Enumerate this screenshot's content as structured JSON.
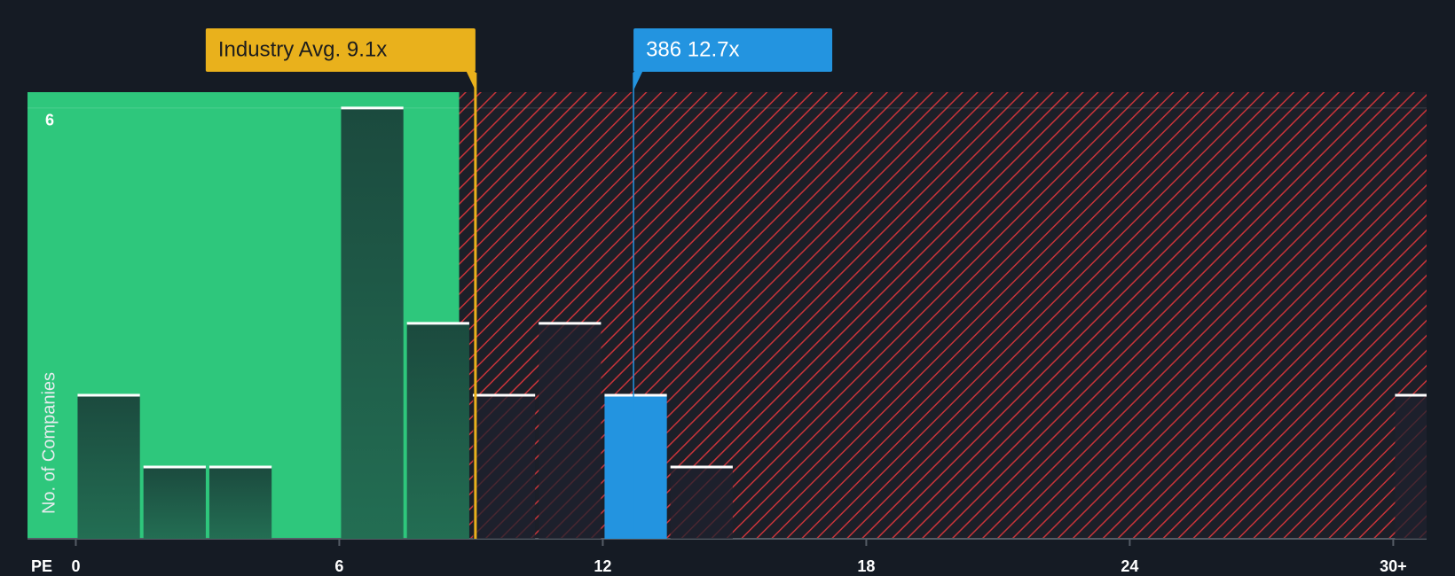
{
  "chart_data": {
    "type": "histogram",
    "x_label": "PE",
    "y_label": "No. of Companies",
    "bins": [
      0,
      1.5,
      3,
      4.5,
      6,
      7.5,
      9,
      10.5,
      12,
      13.5,
      15,
      16.5,
      18,
      19.5,
      21,
      22.5,
      24,
      25.5,
      27,
      28.5,
      30,
      31.5
    ],
    "counts": [
      2,
      1,
      1,
      0,
      6,
      3,
      2,
      3,
      2,
      1,
      0,
      0,
      0,
      0,
      0,
      0,
      0,
      0,
      0,
      0,
      2
    ],
    "xlim": [
      -1.1,
      30.76
    ],
    "ylim": [
      0,
      6.22
    ],
    "xticks": [
      0,
      6,
      12,
      18,
      24,
      {
        "value": 30,
        "label": "30+"
      }
    ],
    "yticks": [
      6
    ],
    "zone_split": 8.73,
    "annotations": [
      {
        "label": "Industry Avg. 9.1x",
        "value": 9.1,
        "color": "#e9b11c"
      },
      {
        "label": "386 12.7x",
        "value": 12.7,
        "color": "#2394e0"
      }
    ]
  }
}
